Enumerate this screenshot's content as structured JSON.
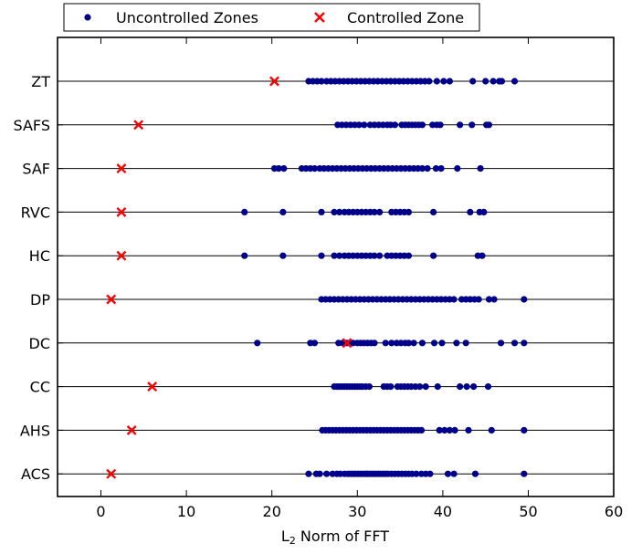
{
  "chart_data": {
    "type": "scatter",
    "title": "",
    "xlabel": "L₂ Norm of FFT",
    "ylabel": "",
    "xlim": [
      -5,
      60
    ],
    "x_ticks": [
      0,
      10,
      20,
      30,
      40,
      50,
      60
    ],
    "categories": [
      "ACS",
      "AHS",
      "CC",
      "DC",
      "DP",
      "HC",
      "RVC",
      "SAF",
      "SAFS",
      "ZT"
    ],
    "legend": {
      "placement": "top-left",
      "position": "outside"
    },
    "grid": "horizontal lines at each category",
    "series": [
      {
        "name": "Uncontrolled Zones",
        "marker": "dot",
        "color": "#00008b",
        "points": {
          "ACS": [
            24.3,
            25.2,
            25.6,
            26.4,
            27.1,
            27.6,
            28.0,
            28.5,
            28.9,
            29.2,
            29.5,
            29.8,
            30.1,
            30.4,
            30.7,
            31.0,
            31.2,
            31.5,
            31.8,
            32.1,
            32.4,
            32.7,
            33.0,
            33.3,
            33.6,
            34.0,
            34.4,
            34.8,
            35.2,
            35.6,
            36.0,
            36.4,
            36.9,
            37.5,
            38.0,
            38.5,
            40.6,
            41.3,
            43.8,
            49.5
          ],
          "AHS": [
            25.9,
            26.3,
            26.7,
            27.1,
            27.5,
            27.9,
            28.3,
            28.7,
            29.1,
            29.5,
            29.9,
            30.3,
            30.7,
            31.1,
            31.5,
            31.9,
            32.3,
            32.7,
            33.1,
            33.5,
            33.9,
            34.3,
            34.7,
            35.1,
            35.5,
            35.9,
            36.3,
            36.7,
            37.1,
            37.5,
            39.6,
            40.2,
            40.8,
            41.4,
            43.0,
            45.7,
            49.5
          ],
          "CC": [
            27.3,
            27.6,
            27.9,
            28.2,
            28.5,
            28.8,
            29.1,
            29.4,
            29.7,
            30.0,
            30.3,
            30.6,
            31.0,
            31.4,
            33.1,
            33.5,
            33.9,
            34.7,
            35.1,
            35.5,
            35.9,
            36.3,
            36.8,
            37.3,
            38.0,
            39.4,
            42.0,
            42.8,
            43.6,
            45.3
          ],
          "DC": [
            18.3,
            24.5,
            25.0,
            27.8,
            28.3,
            28.8,
            29.5,
            30.0,
            30.4,
            30.8,
            31.2,
            31.6,
            32.0,
            33.3,
            34.0,
            34.6,
            35.1,
            35.6,
            36.0,
            36.6,
            37.6,
            39.0,
            39.9,
            41.6,
            42.7,
            46.8,
            48.4,
            49.5
          ],
          "DP": [
            25.8,
            26.3,
            26.8,
            27.3,
            27.8,
            28.3,
            28.8,
            29.3,
            29.8,
            30.3,
            30.8,
            31.3,
            31.8,
            32.3,
            32.8,
            33.3,
            33.8,
            34.3,
            34.8,
            35.3,
            35.8,
            36.3,
            36.8,
            37.3,
            37.8,
            38.3,
            38.8,
            39.3,
            39.8,
            40.3,
            40.8,
            41.3,
            42.2,
            42.7,
            43.2,
            43.7,
            44.2,
            45.4,
            46.0,
            49.5
          ],
          "HC": [
            16.8,
            21.3,
            25.8,
            27.3,
            27.9,
            28.5,
            29.0,
            29.5,
            30.0,
            30.5,
            31.0,
            31.5,
            32.0,
            32.6,
            33.5,
            34.0,
            34.5,
            35.0,
            35.5,
            36.0,
            38.9,
            44.1,
            44.6
          ],
          "RVC": [
            16.8,
            21.3,
            25.8,
            27.3,
            27.9,
            28.5,
            29.0,
            29.5,
            30.0,
            30.5,
            31.0,
            31.5,
            32.0,
            32.6,
            34.0,
            34.5,
            35.0,
            35.5,
            36.0,
            38.9,
            43.2,
            44.3,
            44.8
          ],
          "SAF": [
            20.3,
            20.8,
            21.4,
            23.5,
            24.0,
            24.5,
            25.0,
            25.6,
            26.1,
            26.6,
            27.1,
            27.6,
            28.1,
            28.6,
            29.1,
            29.6,
            30.1,
            30.6,
            31.1,
            31.6,
            32.1,
            32.6,
            33.1,
            33.6,
            34.1,
            34.6,
            35.1,
            35.6,
            36.1,
            36.6,
            37.1,
            37.6,
            38.2,
            39.2,
            39.8,
            41.7,
            44.4
          ],
          "SAFS": [
            27.7,
            28.2,
            28.7,
            29.2,
            29.7,
            30.2,
            30.8,
            31.5,
            32.0,
            32.5,
            33.0,
            33.5,
            33.9,
            34.4,
            35.2,
            35.6,
            36.0,
            36.4,
            36.8,
            37.2,
            37.6,
            38.8,
            39.3,
            39.7,
            42.0,
            43.4,
            45.1,
            45.4
          ],
          "ZT": [
            24.3,
            24.8,
            25.3,
            25.8,
            26.4,
            26.9,
            27.4,
            27.9,
            28.4,
            28.9,
            29.4,
            29.9,
            30.4,
            30.9,
            31.4,
            31.9,
            32.4,
            32.9,
            33.4,
            33.9,
            34.4,
            34.9,
            35.4,
            35.9,
            36.4,
            36.9,
            37.4,
            37.9,
            38.4,
            39.3,
            40.1,
            40.8,
            43.5,
            45.0,
            45.9,
            46.6,
            46.9,
            48.4
          ]
        }
      },
      {
        "name": "Controlled Zone",
        "marker": "x",
        "color": "#ff0000",
        "points": {
          "ACS": [
            1.2
          ],
          "AHS": [
            3.6
          ],
          "CC": [
            6.0
          ],
          "DC": [
            28.8
          ],
          "DP": [
            1.2
          ],
          "HC": [
            2.4
          ],
          "RVC": [
            2.4
          ],
          "SAF": [
            2.4
          ],
          "SAFS": [
            4.4
          ],
          "ZT": [
            20.3
          ]
        }
      }
    ]
  }
}
